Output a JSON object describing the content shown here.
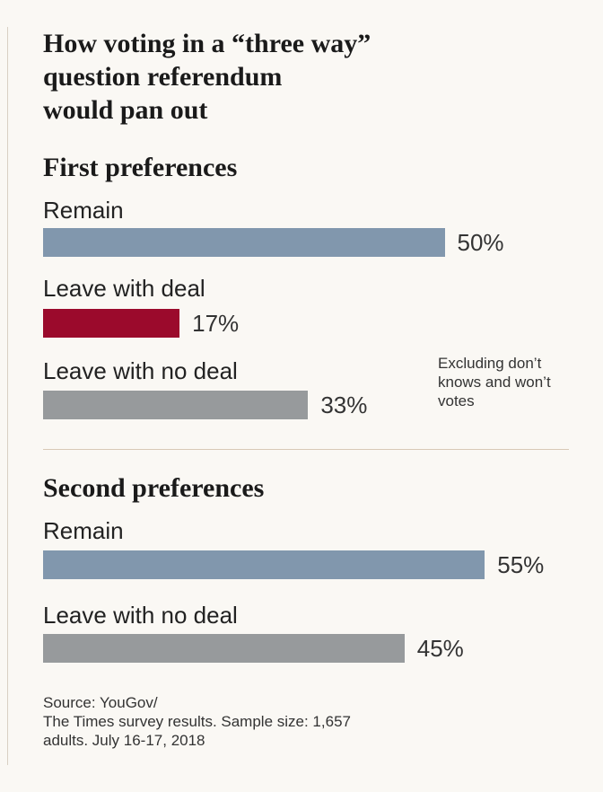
{
  "title_lines": [
    "How voting in a “three way”",
    "question referendum",
    "would pan out"
  ],
  "note": "Excluding don’t knows and won’t votes",
  "source_lines": [
    "Source: YouGov/",
    "The Times survey results. Sample size: 1,657",
    "adults. July 16-17, 2018"
  ],
  "colors": {
    "remain": "#8197ad",
    "leave_with_deal": "#9b0a2c",
    "leave_no_deal": "#979a9c"
  },
  "chart_data": [
    {
      "type": "bar",
      "orientation": "horizontal",
      "title": "First preferences",
      "categories": [
        "Remain",
        "Leave with deal",
        "Leave with no deal"
      ],
      "values": [
        50,
        17,
        33
      ],
      "value_labels": [
        "50%",
        "17%",
        "33%"
      ],
      "unit": "%"
    },
    {
      "type": "bar",
      "orientation": "horizontal",
      "title": "Second preferences",
      "categories": [
        "Remain",
        "Leave with no deal"
      ],
      "values": [
        55,
        45
      ],
      "value_labels": [
        "55%",
        "45%"
      ],
      "unit": "%"
    }
  ]
}
